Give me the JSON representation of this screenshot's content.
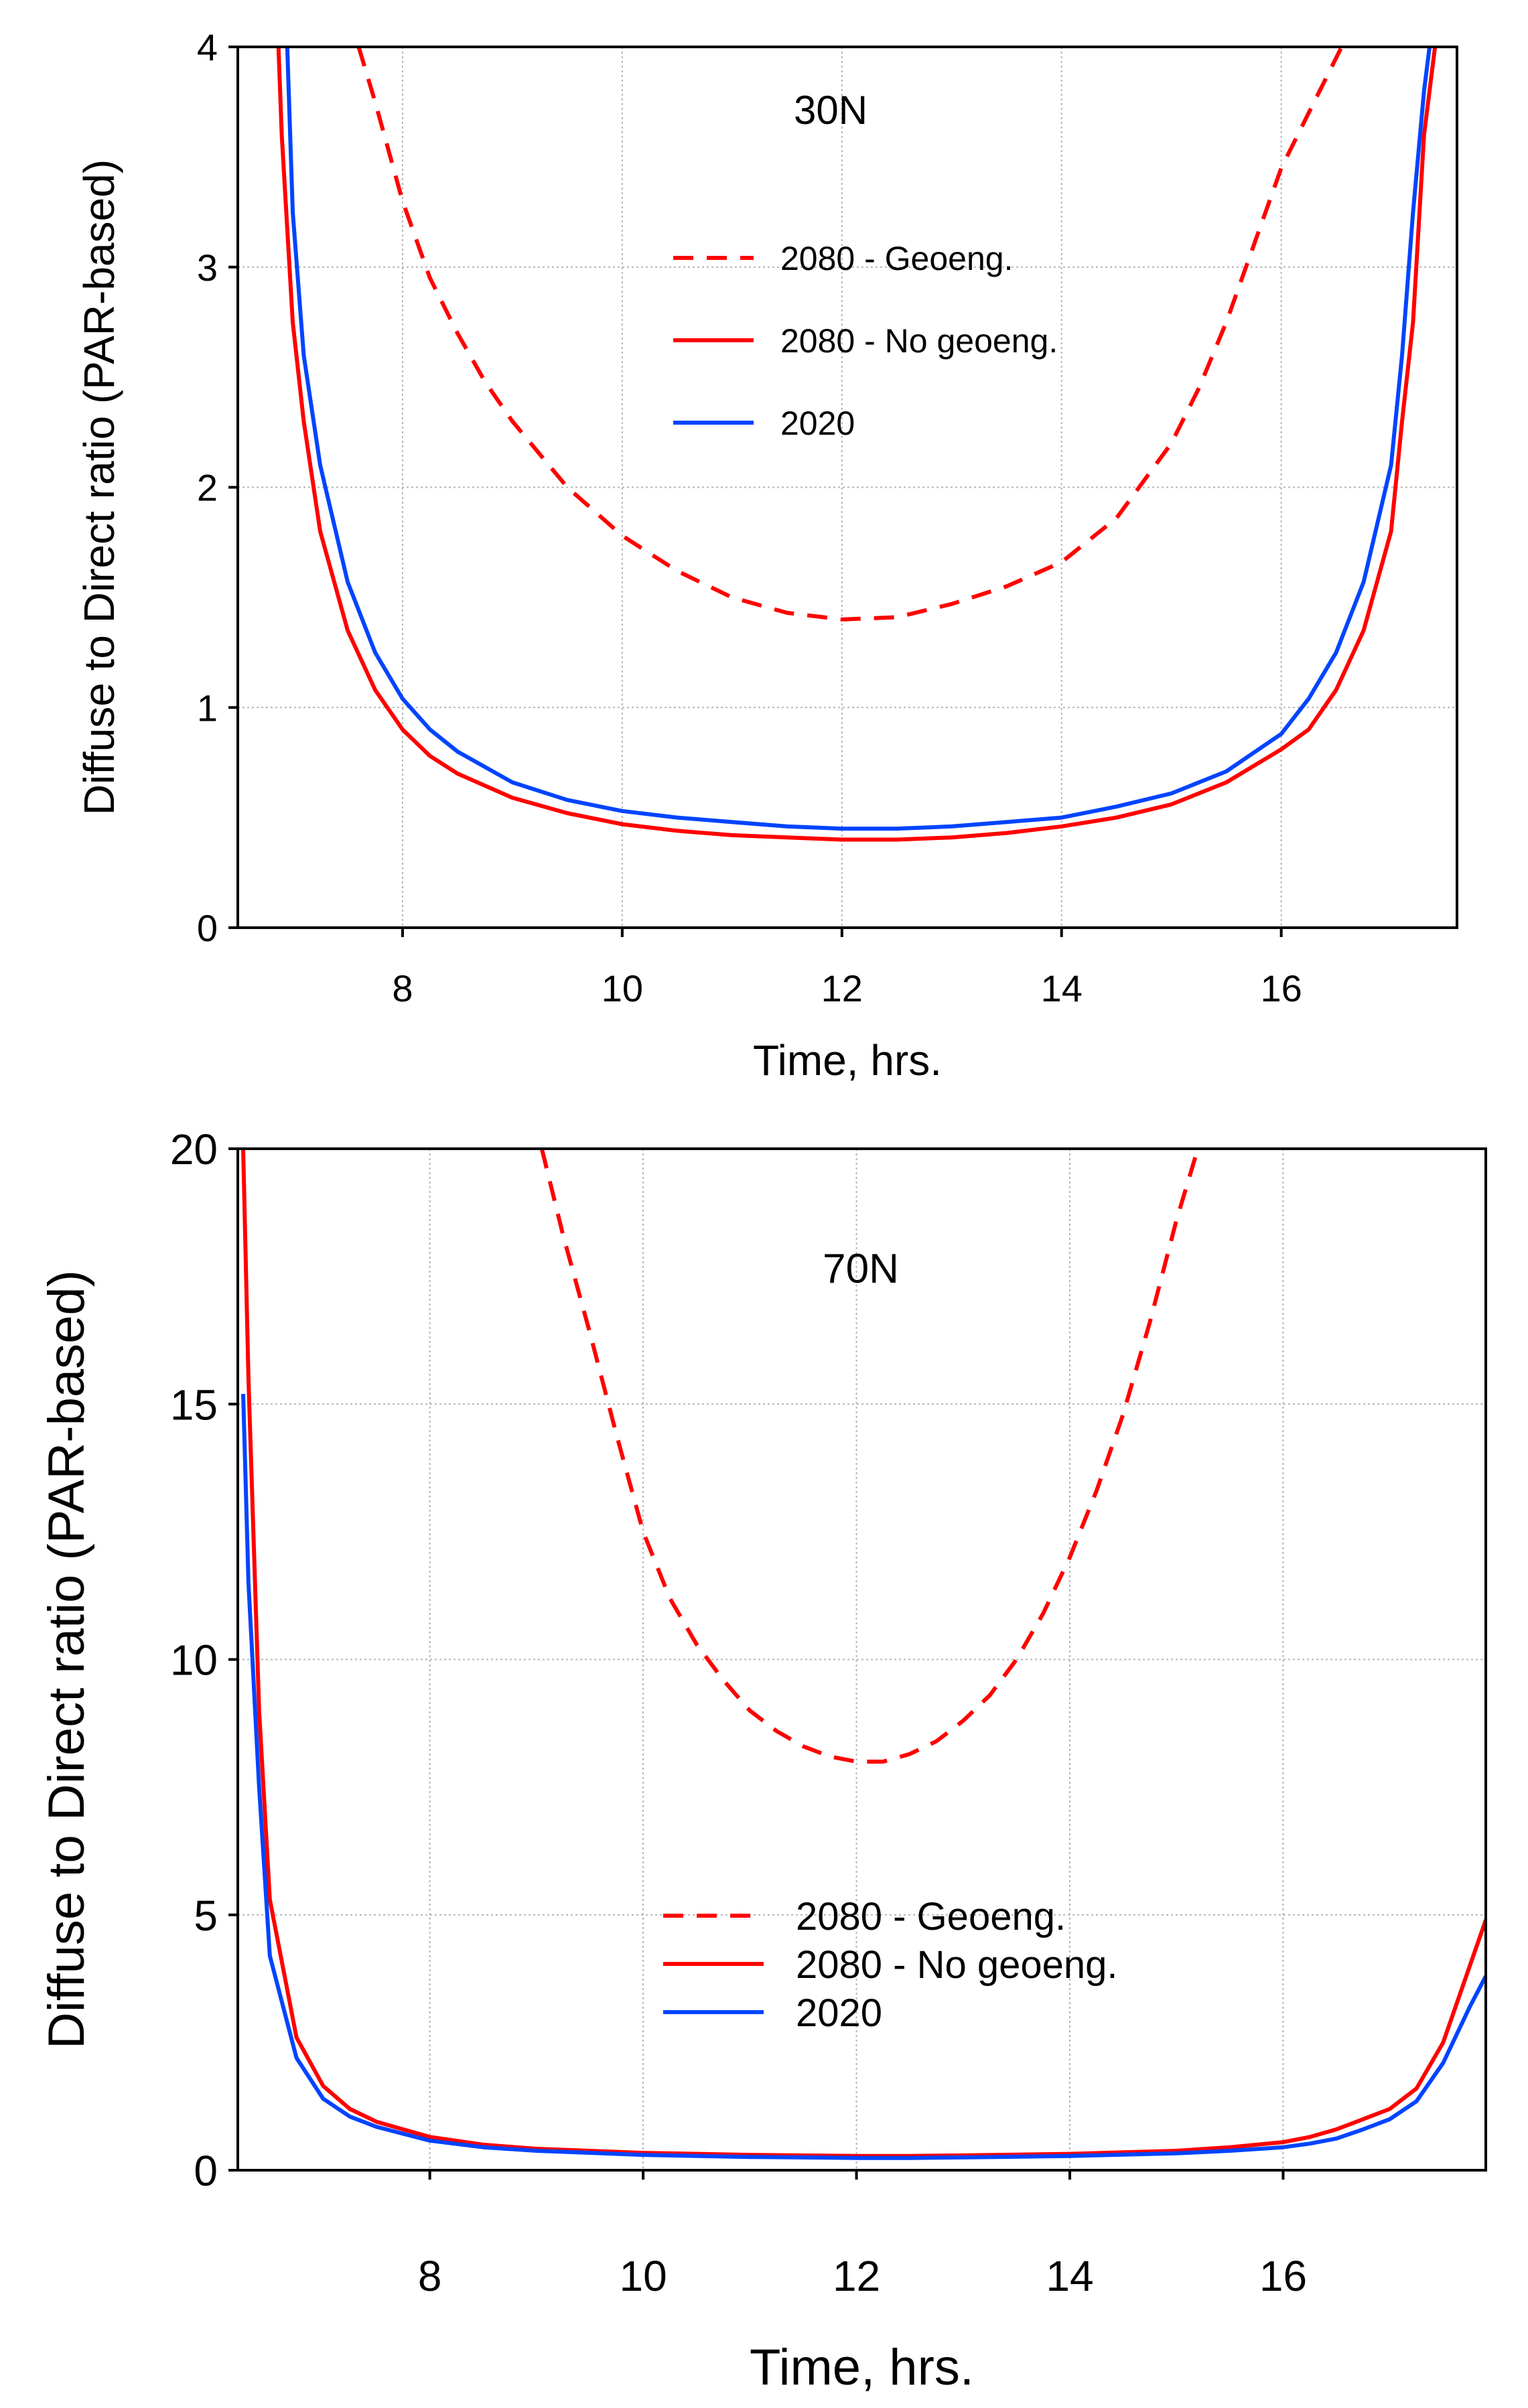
{
  "colors": {
    "geoeng": "#ff0000",
    "nogeoeng": "#ff0000",
    "baseline": "#0044ff",
    "grid": "#b4b4b4",
    "axis": "#000000"
  },
  "chart_data": [
    {
      "type": "line",
      "title": "30N",
      "xlabel": "Time, hrs.",
      "ylabel": "Diffuse to Direct ratio (PAR-based)",
      "xlim": [
        6.5,
        17.6
      ],
      "ylim": [
        0,
        4
      ],
      "xticks": [
        8,
        10,
        12,
        14,
        16
      ],
      "yticks": [
        0,
        1,
        2,
        3,
        4
      ],
      "xtick_labels": [
        "8",
        "10",
        "12",
        "14",
        "16"
      ],
      "ytick_labels": [
        "0",
        "1",
        "2",
        "3",
        "4"
      ],
      "grid": true,
      "legend_position": "upper-center",
      "series": [
        {
          "name": "2080 - Geoeng.",
          "style": "dashed",
          "color": "#ff0000",
          "x": [
            7.6,
            7.75,
            8.0,
            8.25,
            8.5,
            8.75,
            9.0,
            9.5,
            10.0,
            10.5,
            11.0,
            11.5,
            12.0,
            12.5,
            13.0,
            13.5,
            14.0,
            14.5,
            15.0,
            15.25,
            15.5,
            15.75,
            16.0,
            16.25,
            16.55
          ],
          "y": [
            4.0,
            3.75,
            3.3,
            2.95,
            2.7,
            2.48,
            2.3,
            2.0,
            1.78,
            1.62,
            1.5,
            1.43,
            1.4,
            1.41,
            1.47,
            1.55,
            1.66,
            1.86,
            2.2,
            2.45,
            2.75,
            3.1,
            3.45,
            3.7,
            4.0
          ]
        },
        {
          "name": "2080 - No geoeng.",
          "style": "solid",
          "color": "#ff0000",
          "x": [
            6.87,
            6.9,
            7.0,
            7.1,
            7.25,
            7.5,
            7.75,
            8.0,
            8.25,
            8.5,
            9.0,
            9.5,
            10.0,
            10.5,
            11.0,
            11.5,
            12.0,
            12.5,
            13.0,
            13.5,
            14.0,
            14.5,
            15.0,
            15.5,
            16.0,
            16.25,
            16.5,
            16.75,
            17.0,
            17.1,
            17.2,
            17.3,
            17.4
          ],
          "y": [
            4.0,
            3.6,
            2.75,
            2.3,
            1.8,
            1.35,
            1.08,
            0.9,
            0.78,
            0.7,
            0.59,
            0.52,
            0.47,
            0.44,
            0.42,
            0.41,
            0.4,
            0.4,
            0.41,
            0.43,
            0.46,
            0.5,
            0.56,
            0.66,
            0.81,
            0.9,
            1.08,
            1.35,
            1.8,
            2.3,
            2.75,
            3.6,
            4.0
          ]
        },
        {
          "name": "2020",
          "style": "solid",
          "color": "#0044ff",
          "x": [
            6.95,
            7.0,
            7.1,
            7.25,
            7.5,
            7.75,
            8.0,
            8.25,
            8.5,
            9.0,
            9.5,
            10.0,
            10.5,
            11.0,
            11.5,
            12.0,
            12.5,
            13.0,
            13.5,
            14.0,
            14.5,
            15.0,
            15.5,
            16.0,
            16.25,
            16.5,
            16.75,
            17.0,
            17.1,
            17.2,
            17.3,
            17.35
          ],
          "y": [
            4.0,
            3.25,
            2.6,
            2.1,
            1.57,
            1.25,
            1.04,
            0.9,
            0.8,
            0.66,
            0.58,
            0.53,
            0.5,
            0.48,
            0.46,
            0.45,
            0.45,
            0.46,
            0.48,
            0.5,
            0.55,
            0.61,
            0.71,
            0.88,
            1.04,
            1.25,
            1.57,
            2.1,
            2.6,
            3.25,
            3.8,
            4.0
          ]
        }
      ]
    },
    {
      "type": "line",
      "title": "70N",
      "xlabel": "Time, hrs.",
      "ylabel": "Diffuse to Direct ratio (PAR-based)",
      "xlim": [
        6.2,
        17.9
      ],
      "ylim": [
        0,
        20
      ],
      "xticks": [
        8,
        10,
        12,
        14,
        16
      ],
      "yticks": [
        0,
        5,
        10,
        15,
        20
      ],
      "xtick_labels": [
        "8",
        "10",
        "12",
        "14",
        "16"
      ],
      "ytick_labels": [
        "0",
        "5",
        "10",
        "15",
        "20"
      ],
      "grid": true,
      "legend_position": "lower-center",
      "series": [
        {
          "name": "2080 - Geoeng.",
          "style": "dashed",
          "color": "#ff0000",
          "x": [
            9.05,
            9.25,
            9.5,
            9.75,
            10.0,
            10.25,
            10.5,
            10.75,
            11.0,
            11.25,
            11.5,
            11.75,
            12.0,
            12.25,
            12.5,
            12.75,
            13.0,
            13.25,
            13.5,
            13.75,
            14.0,
            14.25,
            14.5,
            14.75,
            15.0,
            15.2
          ],
          "y": [
            20.0,
            18.3,
            16.4,
            14.4,
            12.5,
            11.2,
            10.3,
            9.6,
            9.0,
            8.6,
            8.3,
            8.1,
            8.0,
            8.0,
            8.15,
            8.4,
            8.8,
            9.3,
            10.0,
            10.9,
            12.0,
            13.3,
            14.8,
            16.6,
            18.6,
            20.0
          ]
        },
        {
          "name": "2080 - No geoeng.",
          "style": "solid",
          "color": "#ff0000",
          "x": [
            6.25,
            6.3,
            6.4,
            6.5,
            6.75,
            7.0,
            7.25,
            7.5,
            8.0,
            8.5,
            9.0,
            10.0,
            11.0,
            12.0,
            12.5,
            13.0,
            14.0,
            15.0,
            15.5,
            16.0,
            16.25,
            16.5,
            16.75,
            17.0,
            17.25,
            17.5,
            17.75,
            17.9
          ],
          "y": [
            20.0,
            15.5,
            9.0,
            5.3,
            2.6,
            1.65,
            1.2,
            0.95,
            0.65,
            0.5,
            0.42,
            0.34,
            0.3,
            0.28,
            0.28,
            0.29,
            0.32,
            0.38,
            0.45,
            0.55,
            0.65,
            0.8,
            1.0,
            1.2,
            1.6,
            2.5,
            4.0,
            4.9
          ]
        },
        {
          "name": "2020",
          "style": "solid",
          "color": "#0044ff",
          "x": [
            6.25,
            6.3,
            6.4,
            6.5,
            6.75,
            7.0,
            7.25,
            7.5,
            8.0,
            8.5,
            9.0,
            10.0,
            11.0,
            12.0,
            12.5,
            13.0,
            14.0,
            15.0,
            15.5,
            16.0,
            16.25,
            16.5,
            16.75,
            17.0,
            17.25,
            17.5,
            17.75,
            17.9
          ],
          "y": [
            15.2,
            11.5,
            7.5,
            4.2,
            2.2,
            1.4,
            1.05,
            0.85,
            0.58,
            0.45,
            0.38,
            0.3,
            0.26,
            0.24,
            0.24,
            0.25,
            0.28,
            0.33,
            0.38,
            0.45,
            0.52,
            0.62,
            0.8,
            1.0,
            1.35,
            2.1,
            3.2,
            3.8
          ]
        }
      ]
    }
  ]
}
